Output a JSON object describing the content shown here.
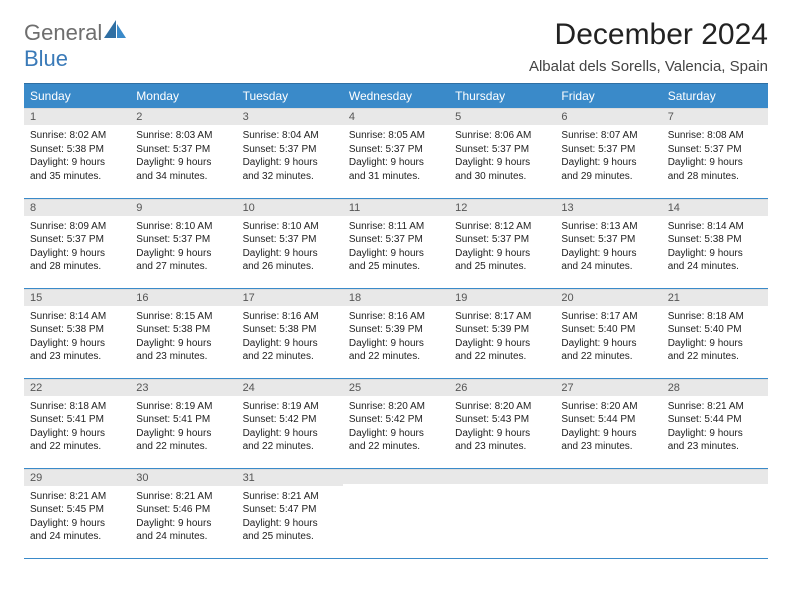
{
  "brand": {
    "text1": "General",
    "text2": "Blue"
  },
  "header": {
    "month": "December 2024",
    "location": "Albalat dels Sorells, Valencia, Spain"
  },
  "colors": {
    "header_bg": "#3a8ac9",
    "header_text": "#ffffff",
    "daynum_bg": "#e8e8e8",
    "daynum_text": "#555555",
    "row_divider": "#3a8ac9",
    "logo_gray": "#6e6e6e",
    "logo_blue": "#3a7ab8",
    "body_text": "#222222",
    "page_bg": "#ffffff"
  },
  "weekdays": [
    "Sunday",
    "Monday",
    "Tuesday",
    "Wednesday",
    "Thursday",
    "Friday",
    "Saturday"
  ],
  "start_offset": 0,
  "days": [
    {
      "n": "1",
      "sunrise": "8:02 AM",
      "sunset": "5:38 PM",
      "daylight": "9 hours and 35 minutes."
    },
    {
      "n": "2",
      "sunrise": "8:03 AM",
      "sunset": "5:37 PM",
      "daylight": "9 hours and 34 minutes."
    },
    {
      "n": "3",
      "sunrise": "8:04 AM",
      "sunset": "5:37 PM",
      "daylight": "9 hours and 32 minutes."
    },
    {
      "n": "4",
      "sunrise": "8:05 AM",
      "sunset": "5:37 PM",
      "daylight": "9 hours and 31 minutes."
    },
    {
      "n": "5",
      "sunrise": "8:06 AM",
      "sunset": "5:37 PM",
      "daylight": "9 hours and 30 minutes."
    },
    {
      "n": "6",
      "sunrise": "8:07 AM",
      "sunset": "5:37 PM",
      "daylight": "9 hours and 29 minutes."
    },
    {
      "n": "7",
      "sunrise": "8:08 AM",
      "sunset": "5:37 PM",
      "daylight": "9 hours and 28 minutes."
    },
    {
      "n": "8",
      "sunrise": "8:09 AM",
      "sunset": "5:37 PM",
      "daylight": "9 hours and 28 minutes."
    },
    {
      "n": "9",
      "sunrise": "8:10 AM",
      "sunset": "5:37 PM",
      "daylight": "9 hours and 27 minutes."
    },
    {
      "n": "10",
      "sunrise": "8:10 AM",
      "sunset": "5:37 PM",
      "daylight": "9 hours and 26 minutes."
    },
    {
      "n": "11",
      "sunrise": "8:11 AM",
      "sunset": "5:37 PM",
      "daylight": "9 hours and 25 minutes."
    },
    {
      "n": "12",
      "sunrise": "8:12 AM",
      "sunset": "5:37 PM",
      "daylight": "9 hours and 25 minutes."
    },
    {
      "n": "13",
      "sunrise": "8:13 AM",
      "sunset": "5:37 PM",
      "daylight": "9 hours and 24 minutes."
    },
    {
      "n": "14",
      "sunrise": "8:14 AM",
      "sunset": "5:38 PM",
      "daylight": "9 hours and 24 minutes."
    },
    {
      "n": "15",
      "sunrise": "8:14 AM",
      "sunset": "5:38 PM",
      "daylight": "9 hours and 23 minutes."
    },
    {
      "n": "16",
      "sunrise": "8:15 AM",
      "sunset": "5:38 PM",
      "daylight": "9 hours and 23 minutes."
    },
    {
      "n": "17",
      "sunrise": "8:16 AM",
      "sunset": "5:38 PM",
      "daylight": "9 hours and 22 minutes."
    },
    {
      "n": "18",
      "sunrise": "8:16 AM",
      "sunset": "5:39 PM",
      "daylight": "9 hours and 22 minutes."
    },
    {
      "n": "19",
      "sunrise": "8:17 AM",
      "sunset": "5:39 PM",
      "daylight": "9 hours and 22 minutes."
    },
    {
      "n": "20",
      "sunrise": "8:17 AM",
      "sunset": "5:40 PM",
      "daylight": "9 hours and 22 minutes."
    },
    {
      "n": "21",
      "sunrise": "8:18 AM",
      "sunset": "5:40 PM",
      "daylight": "9 hours and 22 minutes."
    },
    {
      "n": "22",
      "sunrise": "8:18 AM",
      "sunset": "5:41 PM",
      "daylight": "9 hours and 22 minutes."
    },
    {
      "n": "23",
      "sunrise": "8:19 AM",
      "sunset": "5:41 PM",
      "daylight": "9 hours and 22 minutes."
    },
    {
      "n": "24",
      "sunrise": "8:19 AM",
      "sunset": "5:42 PM",
      "daylight": "9 hours and 22 minutes."
    },
    {
      "n": "25",
      "sunrise": "8:20 AM",
      "sunset": "5:42 PM",
      "daylight": "9 hours and 22 minutes."
    },
    {
      "n": "26",
      "sunrise": "8:20 AM",
      "sunset": "5:43 PM",
      "daylight": "9 hours and 23 minutes."
    },
    {
      "n": "27",
      "sunrise": "8:20 AM",
      "sunset": "5:44 PM",
      "daylight": "9 hours and 23 minutes."
    },
    {
      "n": "28",
      "sunrise": "8:21 AM",
      "sunset": "5:44 PM",
      "daylight": "9 hours and 23 minutes."
    },
    {
      "n": "29",
      "sunrise": "8:21 AM",
      "sunset": "5:45 PM",
      "daylight": "9 hours and 24 minutes."
    },
    {
      "n": "30",
      "sunrise": "8:21 AM",
      "sunset": "5:46 PM",
      "daylight": "9 hours and 24 minutes."
    },
    {
      "n": "31",
      "sunrise": "8:21 AM",
      "sunset": "5:47 PM",
      "daylight": "9 hours and 25 minutes."
    }
  ],
  "labels": {
    "sunrise": "Sunrise: ",
    "sunset": "Sunset: ",
    "daylight": "Daylight: "
  }
}
